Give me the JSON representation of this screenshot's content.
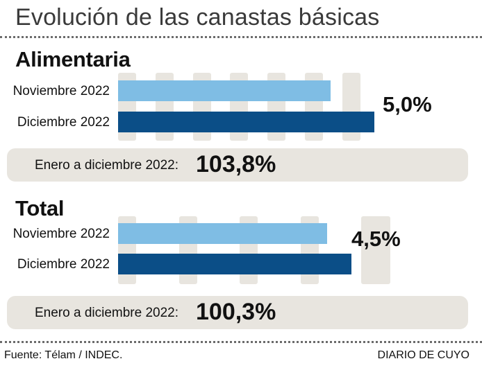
{
  "title": "Evolución de las canastas básicas",
  "chart_data": [
    {
      "type": "bar",
      "title": "Alimentaria",
      "categories": [
        "Noviembre 2022",
        "Diciembre 2022"
      ],
      "values": [
        null,
        null
      ],
      "change_label": "5,0%",
      "change_value": 5.0,
      "summary": {
        "label": "Enero a diciembre 2022:",
        "value_label": "103,8%",
        "value": 103.8
      }
    },
    {
      "type": "bar",
      "title": "Total",
      "categories": [
        "Noviembre 2022",
        "Diciembre 2022"
      ],
      "values": [
        null,
        null
      ],
      "change_label": "4,5%",
      "change_value": 4.5,
      "summary": {
        "label": "Enero a diciembre 2022:",
        "value_label": "100,3%",
        "value": 100.3
      }
    }
  ],
  "colors": {
    "noviembre": "#7fbde4",
    "diciembre": "#0b4e87",
    "background_block": "#e8e5df"
  },
  "footer": {
    "source": "Fuente: Télam / INDEC.",
    "publisher": "DIARIO DE CUYO"
  }
}
